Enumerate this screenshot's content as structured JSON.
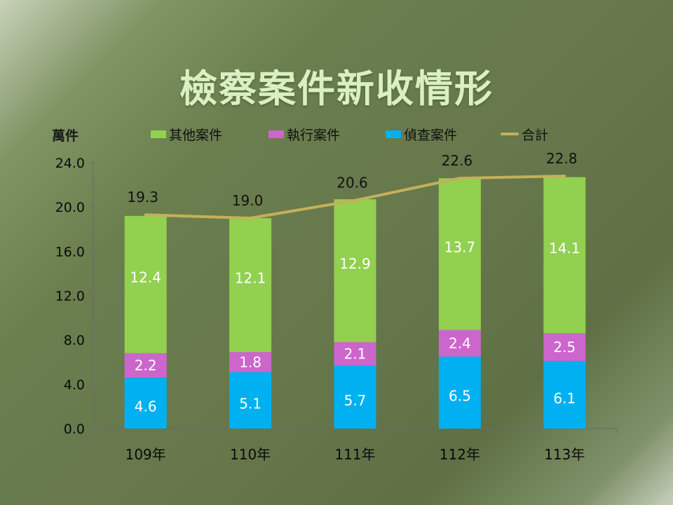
{
  "title": "檢察案件新收情形",
  "y_unit": "萬件",
  "legend": [
    {
      "label": "其他案件",
      "color": "#92d050",
      "kind": "box"
    },
    {
      "label": "執行案件",
      "color": "#cc66cc",
      "kind": "box"
    },
    {
      "label": "偵查案件",
      "color": "#00b0f0",
      "kind": "box"
    },
    {
      "label": "合計",
      "color": "#c4b05a",
      "kind": "line"
    }
  ],
  "chart_data": {
    "type": "bar",
    "stacked": true,
    "title": "檢察案件新收情形",
    "ylabel": "萬件",
    "ylim": [
      0,
      24
    ],
    "yticks": [
      "0.0",
      "4.0",
      "8.0",
      "12.0",
      "16.0",
      "20.0",
      "24.0"
    ],
    "categories": [
      "109年",
      "110年",
      "111年",
      "112年",
      "113年"
    ],
    "series": [
      {
        "name": "偵查案件",
        "color": "#00b0f0",
        "values": [
          4.6,
          5.1,
          5.7,
          6.5,
          6.1
        ],
        "labels": [
          "4.6",
          "5.1",
          "5.7",
          "6.5",
          "6.1"
        ]
      },
      {
        "name": "執行案件",
        "color": "#cc66cc",
        "values": [
          2.2,
          1.8,
          2.1,
          2.4,
          2.5
        ],
        "labels": [
          "2.2",
          "1.8",
          "2.1",
          "2.4",
          "2.5"
        ]
      },
      {
        "name": "其他案件",
        "color": "#92d050",
        "values": [
          12.4,
          12.1,
          12.9,
          13.7,
          14.1
        ],
        "labels": [
          "12.4",
          "12.1",
          "12.9",
          "13.7",
          "14.1"
        ]
      }
    ],
    "total": {
      "name": "合計",
      "type": "line",
      "color": "#c4b05a",
      "values": [
        19.3,
        19.0,
        20.6,
        22.6,
        22.8
      ],
      "labels": [
        "19.3",
        "19.0",
        "20.6",
        "22.6",
        "22.8"
      ]
    },
    "grid": false,
    "legend_position": "top"
  }
}
